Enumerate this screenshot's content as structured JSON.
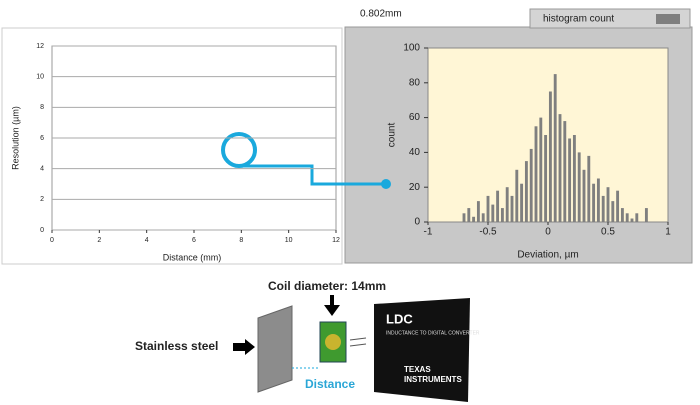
{
  "chart_data": [
    {
      "type": "line",
      "x_label": "Distance (mm)",
      "y_label": "Resolution (µm)",
      "xlim": [
        0,
        12
      ],
      "xticks": [
        0,
        2,
        4,
        6,
        8,
        10,
        12
      ],
      "ylim": [
        0,
        12
      ],
      "yticks": [
        0,
        2,
        4,
        6,
        8,
        10,
        12
      ],
      "grid": true
    },
    {
      "type": "histogram",
      "annotation": "0.802mm",
      "x_label": "Deviation, µm",
      "y_label": "count",
      "xlim": [
        -1,
        1
      ],
      "xticks": [
        -1,
        -0.5,
        0,
        0.5,
        1
      ],
      "ylim": [
        0,
        100
      ],
      "yticks": [
        0,
        20,
        40,
        60,
        80,
        100
      ],
      "grid": false,
      "legend": "top-right",
      "bins": [
        -0.72,
        -0.68,
        -0.64,
        -0.6,
        -0.56,
        -0.52,
        -0.48,
        -0.44,
        -0.4,
        -0.36,
        -0.32,
        -0.28,
        -0.24,
        -0.2,
        -0.16,
        -0.12,
        -0.08,
        -0.04,
        0.0,
        0.04,
        0.08,
        0.12,
        0.16,
        0.2,
        0.24,
        0.28,
        0.32,
        0.36,
        0.4,
        0.44,
        0.48,
        0.52,
        0.56,
        0.6,
        0.64,
        0.68,
        0.72,
        0.76,
        0.8,
        0.84
      ],
      "series": [
        {
          "name": "histogram count",
          "color": "#7f7f7f",
          "values": [
            5,
            8,
            3,
            12,
            5,
            15,
            10,
            18,
            8,
            20,
            15,
            30,
            22,
            35,
            42,
            55,
            60,
            50,
            75,
            85,
            62,
            58,
            48,
            50,
            40,
            30,
            38,
            22,
            25,
            15,
            20,
            12,
            18,
            8,
            5,
            2,
            5,
            0,
            8
          ]
        }
      ]
    }
  ],
  "diagram": {
    "coil_label": "Coil diameter: 14mm",
    "target_label": "Stainless steel",
    "distance_label": "Distance",
    "chip_title": "LDC",
    "chip_subtitle": "INDUCTANCE TO DIGITAL CONVERTER",
    "brand_line1": "TEXAS",
    "brand_line2": "INSTRUMENTS"
  }
}
